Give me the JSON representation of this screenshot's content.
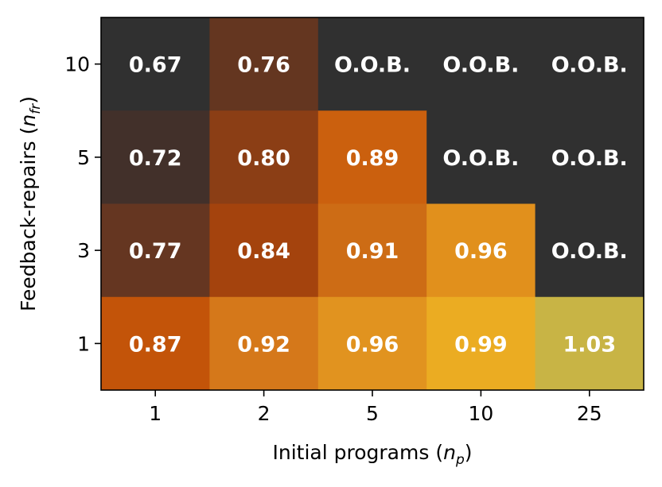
{
  "chart_data": {
    "type": "heatmap",
    "xlabel": "Initial programs",
    "xlabel_symbol": "n",
    "xlabel_subscript": "p",
    "ylabel": "Feedback-repairs",
    "ylabel_symbol": "n",
    "ylabel_subscript": "fr",
    "x_categories": [
      "1",
      "2",
      "5",
      "10",
      "25"
    ],
    "y_categories": [
      "1",
      "3",
      "5",
      "10"
    ],
    "grid": false,
    "colormap": "orange-to-yellow, dark gray for O.O.B.",
    "cells": [
      {
        "x": "1",
        "y": "10",
        "label": "0.67",
        "value": 0.67,
        "color": "#303030"
      },
      {
        "x": "2",
        "y": "10",
        "label": "0.76",
        "value": 0.76,
        "color": "#643620"
      },
      {
        "x": "5",
        "y": "10",
        "label": "O.O.B.",
        "value": null,
        "color": "#303030"
      },
      {
        "x": "10",
        "y": "10",
        "label": "O.O.B.",
        "value": null,
        "color": "#303030"
      },
      {
        "x": "25",
        "y": "10",
        "label": "O.O.B.",
        "value": null,
        "color": "#303030"
      },
      {
        "x": "1",
        "y": "5",
        "label": "0.72",
        "value": 0.72,
        "color": "#42302a"
      },
      {
        "x": "2",
        "y": "5",
        "label": "0.80",
        "value": 0.8,
        "color": "#8b3e15"
      },
      {
        "x": "5",
        "y": "5",
        "label": "0.89",
        "value": 0.89,
        "color": "#cb600e"
      },
      {
        "x": "10",
        "y": "5",
        "label": "O.O.B.",
        "value": null,
        "color": "#303030"
      },
      {
        "x": "25",
        "y": "5",
        "label": "O.O.B.",
        "value": null,
        "color": "#303030"
      },
      {
        "x": "1",
        "y": "3",
        "label": "0.77",
        "value": 0.77,
        "color": "#653621"
      },
      {
        "x": "2",
        "y": "3",
        "label": "0.84",
        "value": 0.84,
        "color": "#a4430d"
      },
      {
        "x": "5",
        "y": "3",
        "label": "0.91",
        "value": 0.91,
        "color": "#cd6c15"
      },
      {
        "x": "10",
        "y": "3",
        "label": "0.96",
        "value": 0.96,
        "color": "#e1901c"
      },
      {
        "x": "25",
        "y": "3",
        "label": "O.O.B.",
        "value": null,
        "color": "#303030"
      },
      {
        "x": "1",
        "y": "1",
        "label": "0.87",
        "value": 0.87,
        "color": "#c35409"
      },
      {
        "x": "2",
        "y": "1",
        "label": "0.92",
        "value": 0.92,
        "color": "#d5781a"
      },
      {
        "x": "5",
        "y": "1",
        "label": "0.96",
        "value": 0.96,
        "color": "#e1931f"
      },
      {
        "x": "10",
        "y": "1",
        "label": "0.99",
        "value": 0.99,
        "color": "#ebac22"
      },
      {
        "x": "25",
        "y": "1",
        "label": "1.03",
        "value": 1.03,
        "color": "#c8b445"
      }
    ]
  }
}
